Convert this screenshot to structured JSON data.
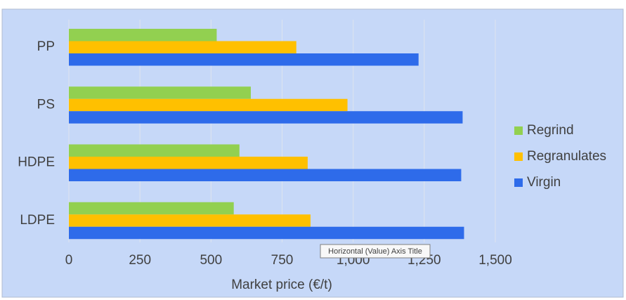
{
  "chart_data": {
    "type": "bar",
    "orientation": "horizontal",
    "x_label": "Market price (€/t)",
    "categories": [
      "PP",
      "PS",
      "HDPE",
      "LDPE"
    ],
    "series": [
      {
        "name": "Regrind",
        "color": "#92d050",
        "values": [
          520,
          640,
          600,
          580
        ]
      },
      {
        "name": "Regranulates",
        "color": "#ffc000",
        "values": [
          800,
          980,
          840,
          850
        ]
      },
      {
        "name": "Virgin",
        "color": "#2e6bea",
        "values": [
          1230,
          1385,
          1380,
          1390
        ]
      }
    ],
    "xlim": [
      0,
      1500
    ],
    "xticks": [
      0,
      250,
      500,
      750,
      {
        "value": 1000,
        "label": "1,000"
      },
      {
        "value": 1250,
        "label": "1,250"
      },
      {
        "value": 1500,
        "label": "1,500"
      }
    ],
    "grid": true,
    "legend": "right",
    "tooltip": "Horizontal (Value) Axis Title"
  }
}
